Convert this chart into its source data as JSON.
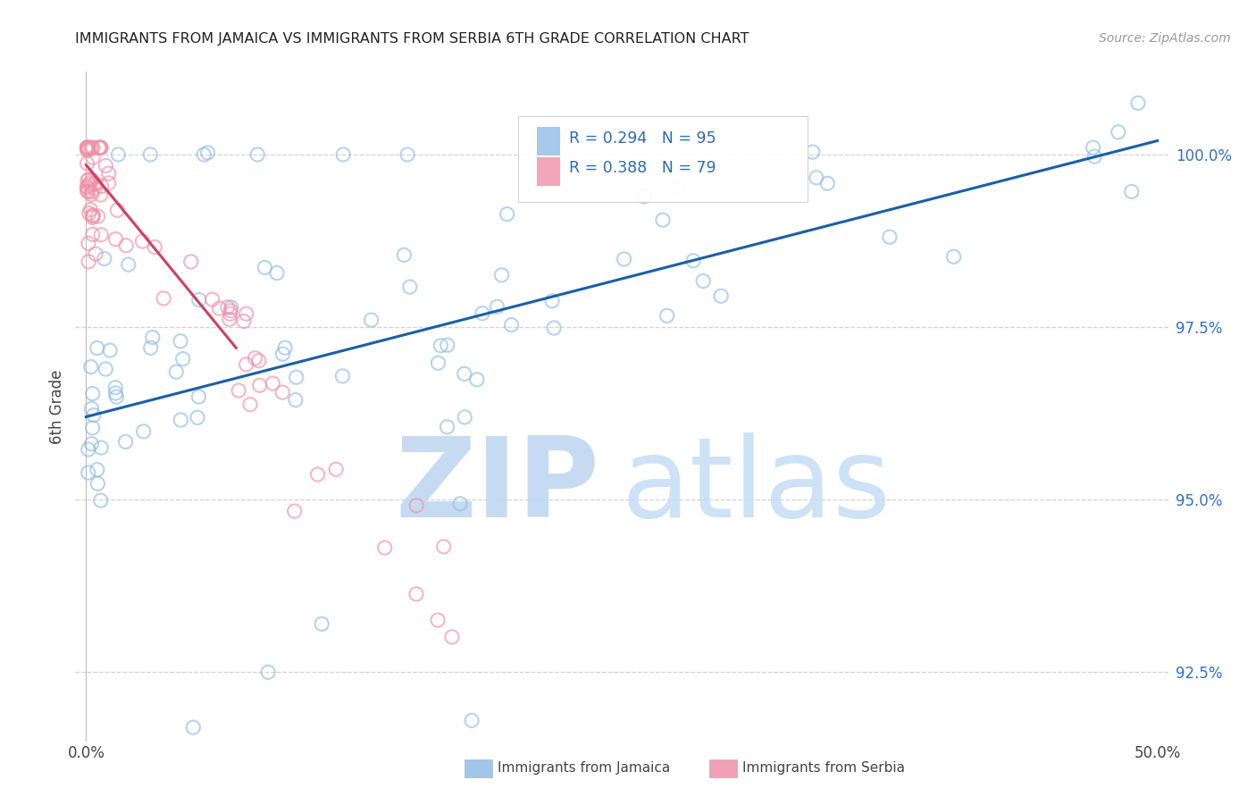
{
  "title": "IMMIGRANTS FROM JAMAICA VS IMMIGRANTS FROM SERBIA 6TH GRADE CORRELATION CHART",
  "source": "Source: ZipAtlas.com",
  "xlabel_blue": "Immigrants from Jamaica",
  "xlabel_pink": "Immigrants from Serbia",
  "ylabel": "6th Grade",
  "xlim": [
    -0.5,
    50.5
  ],
  "ylim": [
    91.5,
    101.2
  ],
  "yticks": [
    92.5,
    95.0,
    97.5,
    100.0
  ],
  "xticks": [
    0.0,
    50.0
  ],
  "blue_color": "#90bce8",
  "pink_color": "#f090a8",
  "blue_line_color": "#1a5fa8",
  "pink_line_color": "#d04060",
  "R_blue": 0.294,
  "N_blue": 95,
  "R_pink": 0.388,
  "N_pink": 79,
  "background_color": "#ffffff",
  "title_color": "#222222",
  "axis_color": "#444444",
  "grid_color": "#c8c8c8",
  "watermark_zip_color": "#c0d8f0",
  "watermark_atlas_color": "#c8dff5",
  "blue_trend_x": [
    0.0,
    50.0
  ],
  "blue_trend_y": [
    96.2,
    100.2
  ],
  "pink_trend_x": [
    0.0,
    7.0
  ],
  "pink_trend_y": [
    99.85,
    97.2
  ]
}
